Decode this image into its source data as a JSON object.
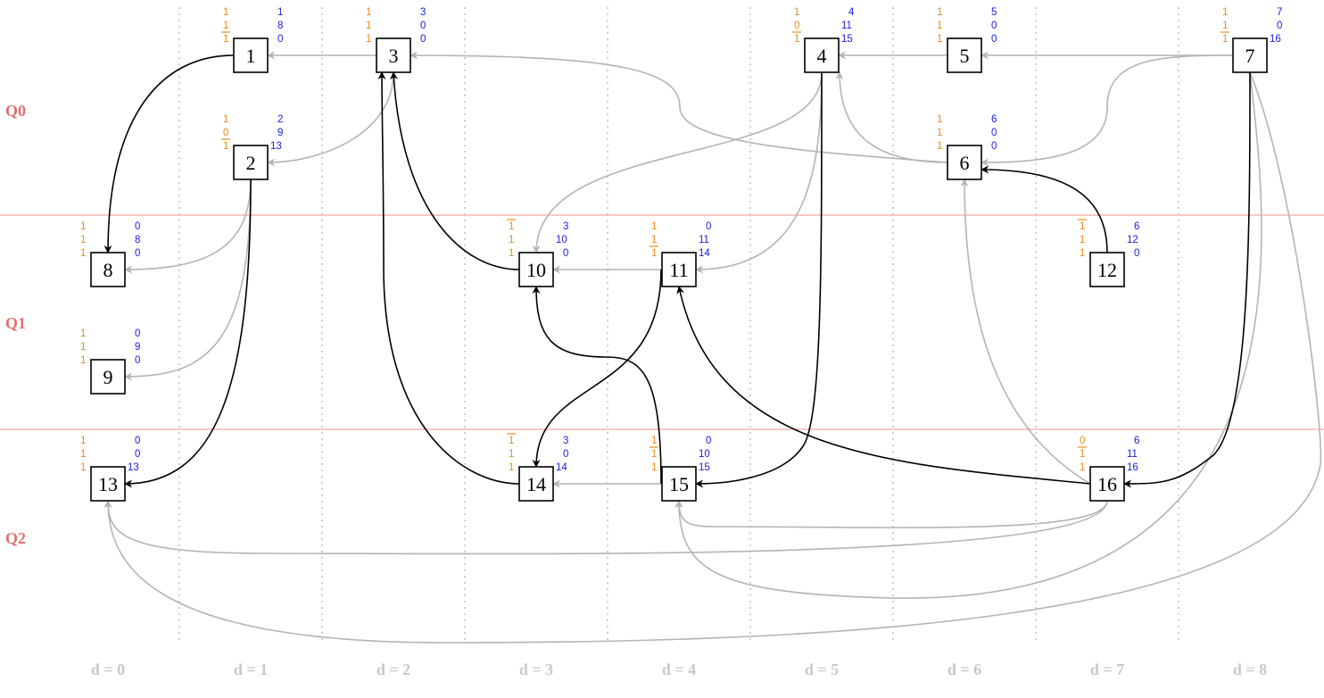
{
  "lanes": [
    {
      "label": "Q0"
    },
    {
      "label": "Q1"
    },
    {
      "label": "Q2"
    }
  ],
  "columns": [
    "d = 0",
    "d = 1",
    "d = 2",
    "d = 3",
    "d = 4",
    "d = 5",
    "d = 6",
    "d = 7",
    "d = 8"
  ],
  "colors": {
    "orange": "#e88a1a",
    "blue": "#1a1ae0",
    "lane": "#e07070",
    "gray_edge": "#b4b4b4",
    "black_edge": "#000000"
  },
  "nodes": [
    {
      "id": "1",
      "d": 1,
      "lane": 0,
      "orange": [
        "1",
        "1",
        "1"
      ],
      "orange_underline": [
        false,
        false,
        true
      ],
      "blue": [
        "1",
        "8",
        "0"
      ]
    },
    {
      "id": "2",
      "d": 1,
      "lane": 0,
      "orange": [
        "1",
        "0",
        "1"
      ],
      "orange_underline": [
        false,
        false,
        true
      ],
      "blue": [
        "2",
        "9",
        "13"
      ]
    },
    {
      "id": "3",
      "d": 2,
      "lane": 0,
      "orange": [
        "1",
        "1",
        "1"
      ],
      "orange_underline": [
        false,
        false,
        false
      ],
      "blue": [
        "3",
        "0",
        "0"
      ]
    },
    {
      "id": "4",
      "d": 5,
      "lane": 0,
      "orange": [
        "1",
        "0",
        "1"
      ],
      "orange_underline": [
        false,
        false,
        true
      ],
      "blue": [
        "4",
        "11",
        "15"
      ]
    },
    {
      "id": "5",
      "d": 6,
      "lane": 0,
      "orange": [
        "1",
        "1",
        "1"
      ],
      "orange_underline": [
        false,
        false,
        false
      ],
      "blue": [
        "5",
        "0",
        "0"
      ]
    },
    {
      "id": "6",
      "d": 6,
      "lane": 0,
      "orange": [
        "1",
        "1",
        "1"
      ],
      "orange_underline": [
        false,
        false,
        false
      ],
      "blue": [
        "6",
        "0",
        "0"
      ]
    },
    {
      "id": "7",
      "d": 8,
      "lane": 0,
      "orange": [
        "1",
        "1",
        "1"
      ],
      "orange_underline": [
        false,
        false,
        true
      ],
      "blue": [
        "7",
        "0",
        "16"
      ]
    },
    {
      "id": "8",
      "d": 0,
      "lane": 1,
      "orange": [
        "1",
        "1",
        "1"
      ],
      "orange_underline": [
        false,
        false,
        false
      ],
      "blue": [
        "0",
        "8",
        "0"
      ]
    },
    {
      "id": "9",
      "d": 0,
      "lane": 1,
      "orange": [
        "1",
        "1",
        "1"
      ],
      "orange_underline": [
        false,
        false,
        false
      ],
      "blue": [
        "0",
        "9",
        "0"
      ]
    },
    {
      "id": "10",
      "d": 3,
      "lane": 1,
      "orange": [
        "1",
        "1",
        "1"
      ],
      "orange_underline": [
        true,
        false,
        false
      ],
      "blue": [
        "3",
        "10",
        "0"
      ]
    },
    {
      "id": "11",
      "d": 4,
      "lane": 1,
      "orange": [
        "1",
        "1",
        "1"
      ],
      "orange_underline": [
        false,
        false,
        true
      ],
      "blue": [
        "0",
        "11",
        "14"
      ]
    },
    {
      "id": "12",
      "d": 7,
      "lane": 1,
      "orange": [
        "1",
        "1",
        "1"
      ],
      "orange_underline": [
        true,
        false,
        false
      ],
      "blue": [
        "6",
        "12",
        "0"
      ]
    },
    {
      "id": "13",
      "d": 0,
      "lane": 2,
      "orange": [
        "1",
        "1",
        "1"
      ],
      "orange_underline": [
        false,
        false,
        false
      ],
      "blue": [
        "0",
        "0",
        "13"
      ]
    },
    {
      "id": "14",
      "d": 3,
      "lane": 2,
      "orange": [
        "1",
        "1",
        "1"
      ],
      "orange_underline": [
        true,
        false,
        false
      ],
      "blue": [
        "3",
        "0",
        "14"
      ]
    },
    {
      "id": "15",
      "d": 4,
      "lane": 2,
      "orange": [
        "1",
        "1",
        "1"
      ],
      "orange_underline": [
        false,
        true,
        false
      ],
      "blue": [
        "0",
        "10",
        "15"
      ]
    },
    {
      "id": "16",
      "d": 7,
      "lane": 2,
      "orange": [
        "0",
        "1",
        "1"
      ],
      "orange_underline": [
        false,
        true,
        false
      ],
      "blue": [
        "6",
        "11",
        "16"
      ]
    }
  ],
  "edges": [
    {
      "from": "3",
      "to": "1",
      "style": "gray"
    },
    {
      "from": "3",
      "to": "2",
      "style": "gray"
    },
    {
      "from": "5",
      "to": "4",
      "style": "gray"
    },
    {
      "from": "7",
      "to": "5",
      "style": "gray"
    },
    {
      "from": "6",
      "to": "4",
      "style": "gray"
    },
    {
      "from": "6",
      "to": "3",
      "style": "gray"
    },
    {
      "from": "7",
      "to": "6",
      "style": "gray"
    },
    {
      "from": "4",
      "to": "10",
      "style": "gray"
    },
    {
      "from": "4",
      "to": "11",
      "style": "gray"
    },
    {
      "from": "11",
      "to": "10",
      "style": "gray"
    },
    {
      "from": "2",
      "to": "8",
      "style": "gray"
    },
    {
      "from": "2",
      "to": "9",
      "style": "gray"
    },
    {
      "from": "15",
      "to": "14",
      "style": "gray"
    },
    {
      "from": "16",
      "to": "6",
      "style": "gray"
    },
    {
      "from": "16",
      "to": "15",
      "style": "gray"
    },
    {
      "from": "16",
      "to": "13",
      "style": "gray"
    },
    {
      "from": "7",
      "to": "15",
      "style": "gray"
    },
    {
      "from": "7",
      "to": "13",
      "style": "gray"
    },
    {
      "from": "1",
      "to": "8",
      "style": "black"
    },
    {
      "from": "2",
      "to": "13",
      "style": "black"
    },
    {
      "from": "10",
      "to": "3",
      "style": "black"
    },
    {
      "from": "14",
      "to": "3",
      "style": "black"
    },
    {
      "from": "4",
      "to": "15",
      "style": "black"
    },
    {
      "from": "12",
      "to": "6",
      "style": "black"
    },
    {
      "from": "7",
      "to": "16",
      "style": "black"
    },
    {
      "from": "11",
      "to": "14",
      "style": "black"
    },
    {
      "from": "15",
      "to": "10",
      "style": "black"
    },
    {
      "from": "16",
      "to": "11",
      "style": "black"
    }
  ]
}
